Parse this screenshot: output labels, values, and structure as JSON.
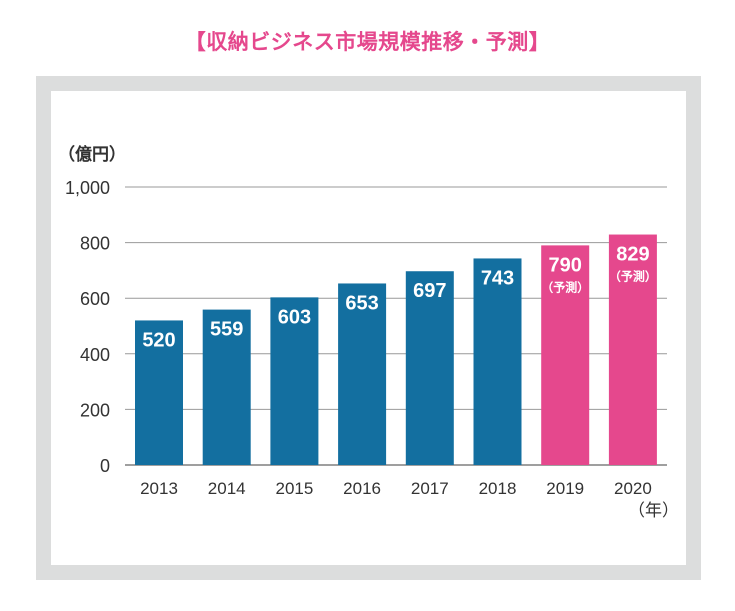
{
  "title": "【収納ビジネス市場規模推移・予測】",
  "colors": {
    "title": "#e5488d",
    "actual": "#136fa0",
    "forecast": "#e5488d",
    "frame": "#dcdddd",
    "grid": "#999999",
    "text": "#333333"
  },
  "chart_data": {
    "type": "bar",
    "title": "【収納ビジネス市場規模推移・予測】",
    "ylabel": "（億円）",
    "xlabel": "（年）",
    "ylim": [
      0,
      1000
    ],
    "yticks": [
      0,
      200,
      400,
      600,
      800,
      1000
    ],
    "ytick_labels": [
      "0",
      "200",
      "400",
      "600",
      "800",
      "1,000"
    ],
    "grid": true,
    "categories": [
      "2013",
      "2014",
      "2015",
      "2016",
      "2017",
      "2018",
      "2019",
      "2020"
    ],
    "values": [
      520,
      559,
      603,
      653,
      697,
      743,
      790,
      829
    ],
    "value_labels": [
      "520",
      "559",
      "603",
      "653",
      "697",
      "743",
      "790",
      "829"
    ],
    "forecast": [
      false,
      false,
      false,
      false,
      false,
      false,
      true,
      true
    ],
    "forecast_label": "（予測）"
  }
}
